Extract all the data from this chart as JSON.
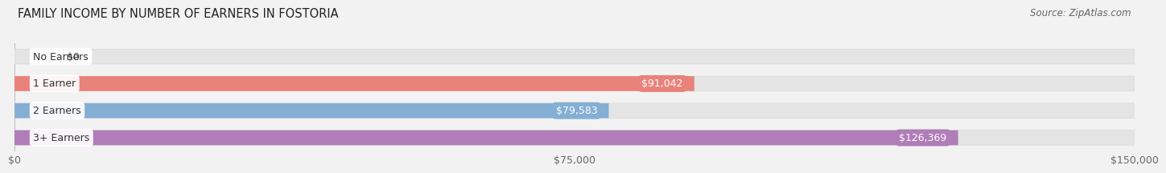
{
  "title": "FAMILY INCOME BY NUMBER OF EARNERS IN FOSTORIA",
  "source": "Source: ZipAtlas.com",
  "categories": [
    "No Earners",
    "1 Earner",
    "2 Earners",
    "3+ Earners"
  ],
  "values": [
    0,
    91042,
    79583,
    126369
  ],
  "bar_colors": [
    "#f5c98a",
    "#e8827a",
    "#85aed4",
    "#b07db8"
  ],
  "value_labels": [
    "$0",
    "$91,042",
    "$79,583",
    "$126,369"
  ],
  "xlim": [
    0,
    150000
  ],
  "xticks": [
    0,
    75000,
    150000
  ],
  "xtick_labels": [
    "$0",
    "$75,000",
    "$150,000"
  ],
  "background_color": "#f2f2f2",
  "bar_bg_color": "#e4e4e4",
  "bar_bg_outline": "#d8d8d8",
  "title_fontsize": 10.5,
  "source_fontsize": 8.5,
  "label_fontsize": 9,
  "value_fontsize": 9
}
